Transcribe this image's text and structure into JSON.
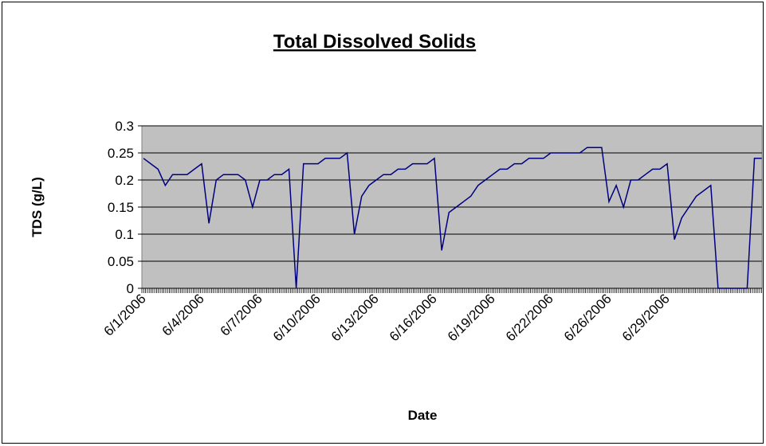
{
  "chart_data": {
    "type": "line",
    "title": "Total Dissolved Solids",
    "x_label": "Date",
    "y_label": "TDS (g/L)",
    "categories": [
      "6/1/2006",
      null,
      null,
      null,
      null,
      null,
      null,
      null,
      "6/4/2006",
      null,
      null,
      null,
      null,
      null,
      null,
      null,
      "6/7/2006",
      null,
      null,
      null,
      null,
      null,
      null,
      null,
      "6/10/2006",
      null,
      null,
      null,
      null,
      null,
      null,
      null,
      "6/13/2006",
      null,
      null,
      null,
      null,
      null,
      null,
      null,
      "6/16/2006",
      null,
      null,
      null,
      null,
      null,
      null,
      null,
      "6/19/2006",
      null,
      null,
      null,
      null,
      null,
      null,
      null,
      "6/22/2006",
      null,
      null,
      null,
      null,
      null,
      null,
      null,
      "6/26/2006",
      null,
      null,
      null,
      null,
      null,
      null,
      null,
      "6/29/2006",
      null,
      null,
      null,
      null,
      null,
      null,
      null,
      null,
      null,
      null,
      null,
      null,
      null
    ],
    "values": [
      0.24,
      0.23,
      0.22,
      0.19,
      0.21,
      0.21,
      0.21,
      0.22,
      0.23,
      0.12,
      0.2,
      0.21,
      0.21,
      0.21,
      0.2,
      0.15,
      0.2,
      0.2,
      0.21,
      0.21,
      0.22,
      0,
      0.23,
      0.23,
      0.23,
      0.24,
      0.24,
      0.24,
      0.25,
      0.1,
      0.17,
      0.19,
      0.2,
      0.21,
      0.21,
      0.22,
      0.22,
      0.23,
      0.23,
      0.23,
      0.24,
      0.07,
      0.14,
      0.15,
      0.16,
      0.17,
      0.19,
      0.2,
      0.21,
      0.22,
      0.22,
      0.23,
      0.23,
      0.24,
      0.24,
      0.24,
      0.25,
      0.25,
      0.25,
      0.25,
      0.25,
      0.26,
      0.26,
      0.26,
      0.16,
      0.19,
      0.15,
      0.2,
      0.2,
      0.21,
      0.22,
      0.22,
      0.23,
      0.09,
      0.13,
      0.15,
      0.17,
      0.18,
      0.19,
      0,
      0,
      0,
      0,
      0,
      0.24,
      0.24
    ],
    "color": "#000080",
    "ylim": [
      0,
      0.3
    ],
    "yticks": [
      0,
      0.05,
      0.1,
      0.15,
      0.2,
      0.25,
      0.3
    ],
    "grid": true
  }
}
